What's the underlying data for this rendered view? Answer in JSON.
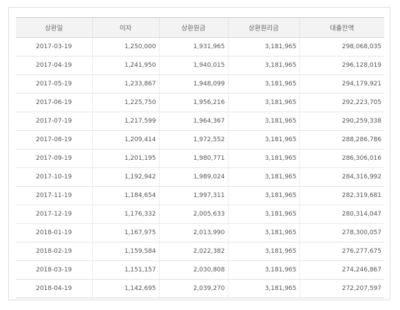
{
  "table": {
    "headers": [
      "상환일",
      "이자",
      "상환원금",
      "상환원리금",
      "대출잔액"
    ],
    "rows": [
      [
        "2017-03-19",
        "1,250,000",
        "1,931,965",
        "3,181,965",
        "298,068,035"
      ],
      [
        "2017-04-19",
        "1,241,950",
        "1,940,015",
        "3,181,965",
        "296,128,019"
      ],
      [
        "2017-05-19",
        "1,233,867",
        "1,948,099",
        "3,181,965",
        "294,179,921"
      ],
      [
        "2017-06-19",
        "1,225,750",
        "1,956,216",
        "3,181,965",
        "292,223,705"
      ],
      [
        "2017-07-19",
        "1,217,599",
        "1,964,367",
        "3,181,965",
        "290,259,338"
      ],
      [
        "2017-08-19",
        "1,209,414",
        "1,972,552",
        "3,181,965",
        "288,286,786"
      ],
      [
        "2017-09-19",
        "1,201,195",
        "1,980,771",
        "3,181,965",
        "286,306,016"
      ],
      [
        "2017-10-19",
        "1,192,942",
        "1,989,024",
        "3,181,965",
        "284,316,992"
      ],
      [
        "2017-11-19",
        "1,184,654",
        "1,997,311",
        "3,181,965",
        "282,319,681"
      ],
      [
        "2017-12-19",
        "1,176,332",
        "2,005,633",
        "3,181,965",
        "280,314,047"
      ],
      [
        "2018-01-19",
        "1,167,975",
        "2,013,990",
        "3,181,965",
        "278,300,057"
      ],
      [
        "2018-02-19",
        "1,159,584",
        "2,022,382",
        "3,181,965",
        "276,277,675"
      ],
      [
        "2018-03-19",
        "1,151,157",
        "2,030,808",
        "3,181,965",
        "274,246,867"
      ],
      [
        "2018-04-19",
        "1,142,695",
        "2,039,270",
        "3,181,965",
        "272,207,597"
      ]
    ]
  }
}
